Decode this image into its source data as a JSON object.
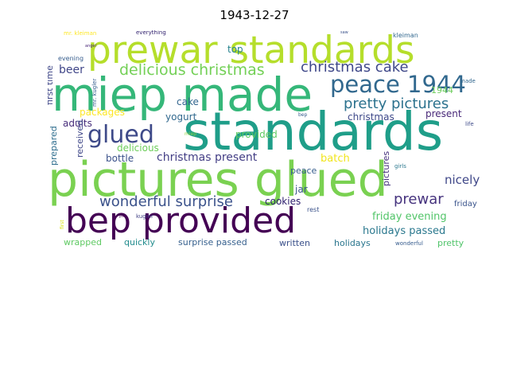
{
  "title": "1943-12-27",
  "words": [
    {
      "text": "pictures glued",
      "color": "#7ad151"
    },
    {
      "text": "standards",
      "color": "#1f9e89"
    },
    {
      "text": "miep made",
      "color": "#35b779"
    },
    {
      "text": "bep provided",
      "color": "#440154"
    },
    {
      "text": "prewar standards",
      "color": "#b5de2b"
    },
    {
      "text": "peace 1944",
      "color": "#31688e"
    },
    {
      "text": "glued",
      "color": "#3e4a89"
    },
    {
      "text": "delicious christmas",
      "color": "#73d056"
    },
    {
      "text": "christmas cake",
      "color": "#3f4889"
    },
    {
      "text": "pretty pictures",
      "color": "#2c728e"
    },
    {
      "text": "wonderful surprise",
      "color": "#3b528b"
    },
    {
      "text": "prewar",
      "color": "#46337e"
    },
    {
      "text": "christmas present",
      "color": "#433e85"
    },
    {
      "text": "friday evening",
      "color": "#52c569"
    },
    {
      "text": "holidays passed",
      "color": "#2a788e"
    },
    {
      "text": "nicely",
      "color": "#3f4788"
    },
    {
      "text": "batch",
      "color": "#f1e51d"
    },
    {
      "text": "beer",
      "color": "#404688"
    },
    {
      "text": "top",
      "color": "#26828e"
    },
    {
      "text": "cake",
      "color": "#32658e"
    },
    {
      "text": "packages",
      "color": "#fde725"
    },
    {
      "text": "provided",
      "color": "#5ec962"
    },
    {
      "text": "yogurt",
      "color": "#31688e"
    },
    {
      "text": "christmas",
      "color": "#3e4989"
    },
    {
      "text": "present",
      "color": "#482878"
    },
    {
      "text": "adults",
      "color": "#472d7b"
    },
    {
      "text": "delicious",
      "color": "#6ccd5a"
    },
    {
      "text": "bottle",
      "color": "#3b528b"
    },
    {
      "text": "1944",
      "color": "#6ccd5a"
    },
    {
      "text": "peace",
      "color": "#365d8d"
    },
    {
      "text": "jar",
      "color": "#39568c"
    },
    {
      "text": "cookies",
      "color": "#2d1e6d"
    },
    {
      "text": "rest",
      "color": "#3b528b"
    },
    {
      "text": "friday",
      "color": "#3a548c"
    },
    {
      "text": "wrapped",
      "color": "#5ec962"
    },
    {
      "text": "quickly",
      "color": "#228c8d"
    },
    {
      "text": "surprise passed",
      "color": "#355f8d"
    },
    {
      "text": "written",
      "color": "#3b518b"
    },
    {
      "text": "holidays",
      "color": "#2a768e"
    },
    {
      "text": "pretty",
      "color": "#50c46a"
    },
    {
      "text": "wonderful",
      "color": "#365c8d"
    },
    {
      "text": "evening",
      "color": "#365d8d"
    },
    {
      "text": "kugler",
      "color": "#424186"
    },
    {
      "text": "mr. kleiman",
      "color": "#fde725"
    },
    {
      "text": "everything",
      "color": "#2e1e6c"
    },
    {
      "text": "kleiman",
      "color": "#31678e"
    },
    {
      "text": "made",
      "color": "#31678e"
    },
    {
      "text": "life",
      "color": "#3e4a89"
    },
    {
      "text": "girls",
      "color": "#2a788e"
    },
    {
      "text": "bep",
      "color": "#365d8d"
    },
    {
      "text": "miep",
      "color": "#8fd744"
    },
    {
      "text": "first time",
      "color": "#3f4788"
    },
    {
      "text": "prepared",
      "color": "#2e6d8e"
    },
    {
      "text": "received",
      "color": "#3f4788"
    },
    {
      "text": "pictures",
      "color": "#46327e"
    },
    {
      "text": "mr. kugler",
      "color": "#365d8d"
    },
    {
      "text": "first",
      "color": "#dae319"
    },
    {
      "text": "saw",
      "color": "#3b528b"
    },
    {
      "text": "angel",
      "color": "#482475"
    },
    {
      "text": "pink",
      "color": "#440154"
    }
  ]
}
